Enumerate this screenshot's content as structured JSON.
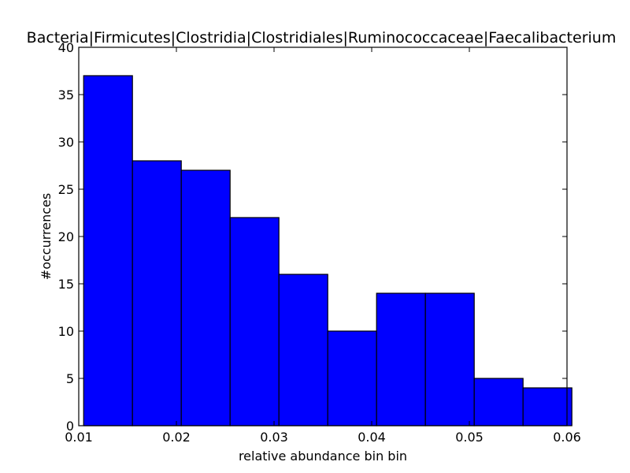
{
  "chart_data": {
    "type": "bar",
    "title": "Bacteria|Firmicutes|Clostridia|Clostridiales|Ruminococcaceae|Faecalibacterium",
    "xlabel": "relative abundance bin bin",
    "ylabel": "#occurrences",
    "xlim": [
      0.01,
      0.06
    ],
    "ylim": [
      0,
      40
    ],
    "xticks": [
      0.01,
      0.02,
      0.03,
      0.04,
      0.05,
      0.06
    ],
    "xtick_labels": [
      "0.01",
      "0.02",
      "0.03",
      "0.04",
      "0.05",
      "0.06"
    ],
    "yticks": [
      0,
      5,
      10,
      15,
      20,
      25,
      30,
      35,
      40
    ],
    "ytick_labels": [
      "0",
      "5",
      "10",
      "15",
      "20",
      "25",
      "30",
      "35",
      "40"
    ],
    "bin_edges": [
      0.0105,
      0.0155,
      0.0205,
      0.0255,
      0.0305,
      0.0355,
      0.0405,
      0.0455,
      0.0505,
      0.0555,
      0.0605
    ],
    "values": [
      37,
      28,
      27,
      22,
      16,
      10,
      14,
      14,
      5,
      4
    ],
    "bar_color": "#0000ff",
    "edge_color": "#000000",
    "grid": false
  }
}
